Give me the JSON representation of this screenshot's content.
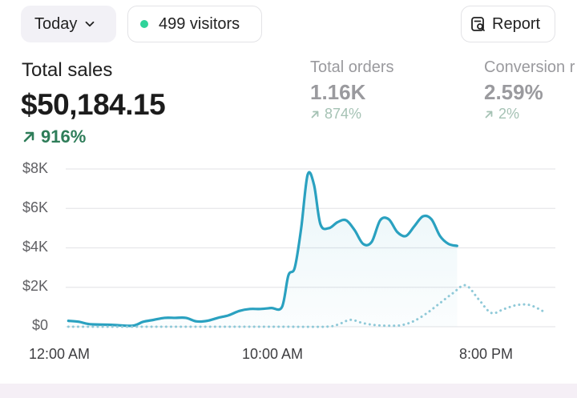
{
  "filters": {
    "date_range": "Today",
    "visitors": "499 visitors",
    "report_label": "Report"
  },
  "metrics": {
    "total_sales": {
      "label": "Total sales",
      "value": "$50,184.15",
      "change": "916%"
    },
    "total_orders": {
      "label": "Total orders",
      "value": "1.16K",
      "change": "874%"
    },
    "conversion": {
      "label": "Conversion r",
      "value": "2.59%",
      "change": "2%"
    }
  },
  "colors": {
    "primary_line": "#2aa1c0",
    "comparison_line": "#8fc9d8",
    "positive": "#2e7d59"
  },
  "chart_data": {
    "type": "line",
    "y_ticks": [
      "$8K",
      "$6K",
      "$4K",
      "$2K",
      "$0"
    ],
    "x_ticks": [
      "12:00 AM",
      "10:00 AM",
      "8:00 PM"
    ],
    "ylim": [
      0,
      8000
    ],
    "x_unit": "hours since 12:00 AM",
    "xlim": [
      -1.7,
      22.8
    ],
    "grid": true,
    "series": [
      {
        "style": "solid",
        "x": [
          0,
          0.5,
          1,
          2,
          3,
          3.5,
          4,
          4.5,
          5,
          5.5,
          6,
          6.5,
          7,
          7.5,
          8,
          8.5,
          9,
          9.5,
          10,
          10.3,
          10.6,
          10.9,
          11.2,
          11.5,
          11.8,
          12.2,
          12.6,
          13.0,
          13.4,
          13.8,
          14.2,
          14.6,
          15.0,
          15.4,
          15.8,
          16.2,
          16.6,
          17.0,
          17.4,
          17.8,
          18.2
        ],
        "values": [
          300,
          250,
          130,
          100,
          50,
          250,
          350,
          450,
          450,
          450,
          270,
          300,
          450,
          580,
          800,
          900,
          900,
          950,
          1000,
          2600,
          3000,
          5000,
          7700,
          7200,
          5200,
          5000,
          5300,
          5400,
          4900,
          4200,
          4300,
          5400,
          5450,
          4800,
          4600,
          5100,
          5600,
          5450,
          4600,
          4200,
          4100
        ]
      },
      {
        "style": "dotted",
        "x": [
          0,
          2,
          4,
          6,
          8,
          10,
          12,
          12.6,
          13.2,
          13.8,
          14.4,
          15,
          15.6,
          16.2,
          16.8,
          17.4,
          18,
          18.6,
          19.2,
          19.8,
          20.4,
          21,
          21.6,
          22.2
        ],
        "values": [
          0,
          0,
          0,
          0,
          0,
          0,
          0,
          100,
          350,
          180,
          80,
          50,
          80,
          300,
          700,
          1200,
          1700,
          2100,
          1400,
          700,
          900,
          1100,
          1100,
          800
        ]
      }
    ]
  }
}
